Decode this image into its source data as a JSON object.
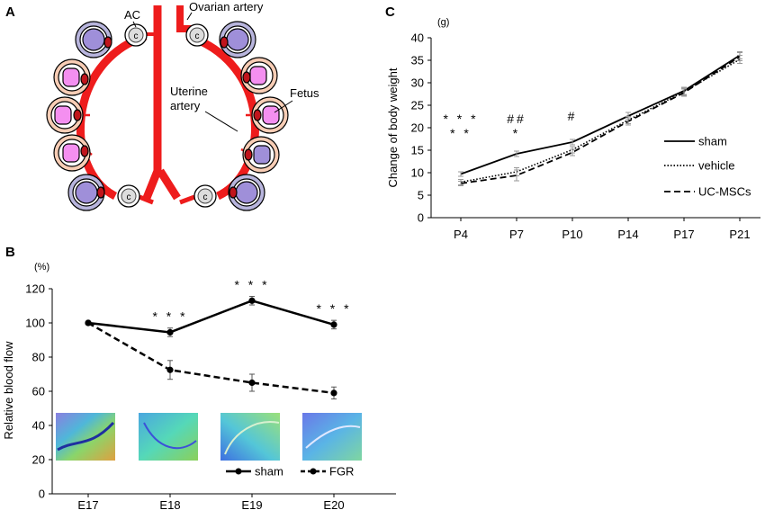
{
  "panel_a": {
    "letter": "A",
    "labels": {
      "ac": "AC",
      "ovarian_artery": "Ovarian artery",
      "uterine_artery_line1": "Uterine",
      "uterine_artery_line2": "artery",
      "fetus": "Fetus",
      "ac_glyph": "c"
    },
    "colors": {
      "artery": "#ee1c1c",
      "sac_purple": "#b8b5dd",
      "sac_peach": "#f8cdb5",
      "embryo_purple": "#9f8fd9",
      "embryo_pink": "#f48ff0",
      "placenta": "#c0151c"
    }
  },
  "panel_b": {
    "letter": "B"
  },
  "panel_c": {
    "letter": "C"
  },
  "chart_data": [
    {
      "id": "B",
      "type": "line",
      "ylabel": "Relative blood flow",
      "yunit": "(%)",
      "ylim": [
        0,
        120
      ],
      "yticks": [
        0,
        20,
        40,
        60,
        80,
        100,
        120
      ],
      "categories": [
        "E17",
        "E18",
        "E19",
        "E20"
      ],
      "series": [
        {
          "name": "sham",
          "style": "solid",
          "values": [
            100,
            94.5,
            113,
            99
          ],
          "errors": [
            0,
            2.5,
            2.5,
            2.5
          ]
        },
        {
          "name": "FGR",
          "style": "dashed",
          "values": [
            100,
            72.5,
            65,
            59
          ],
          "errors": [
            0,
            5.5,
            5,
            3.5
          ]
        }
      ],
      "annotations": [
        {
          "category": "E18",
          "text": "* * *"
        },
        {
          "category": "E19",
          "text": "* * *"
        },
        {
          "category": "E20",
          "text": "* * *"
        }
      ],
      "legend": "bottom-right",
      "inset_images": [
        "E17",
        "E18",
        "E19",
        "E20"
      ]
    },
    {
      "id": "C",
      "type": "line",
      "ylabel": "Change of body weight",
      "yunit": "(g)",
      "ylim": [
        0,
        40
      ],
      "yticks": [
        0,
        5,
        10,
        15,
        20,
        25,
        30,
        35,
        40
      ],
      "categories": [
        "P4",
        "P7",
        "P10",
        "P14",
        "P17",
        "P21"
      ],
      "series": [
        {
          "name": "sham",
          "style": "solid",
          "values": [
            9.7,
            14.2,
            16.8,
            22.6,
            28.2,
            36.1
          ],
          "errors": [
            0.5,
            0.6,
            0.6,
            0.8,
            0.8,
            0.8
          ]
        },
        {
          "name": "vehicle",
          "style": "dotted",
          "values": [
            7.9,
            10.2,
            15.1,
            21.7,
            28.0,
            35.2
          ],
          "errors": [
            0.6,
            0.9,
            0.7,
            0.8,
            0.8,
            0.9
          ]
        },
        {
          "name": "UC-MSCs",
          "style": "dashed",
          "values": [
            7.6,
            9.4,
            14.5,
            21.4,
            27.8,
            35.8
          ],
          "errors": [
            0.5,
            1.2,
            0.7,
            0.8,
            0.8,
            0.9
          ]
        }
      ],
      "annotations": [
        {
          "category": "P4",
          "lines": [
            "* * *",
            "* *"
          ]
        },
        {
          "category": "P7",
          "lines": [
            "##",
            "*"
          ]
        },
        {
          "category": "P10",
          "lines": [
            "#"
          ]
        }
      ],
      "legend": "right"
    }
  ]
}
